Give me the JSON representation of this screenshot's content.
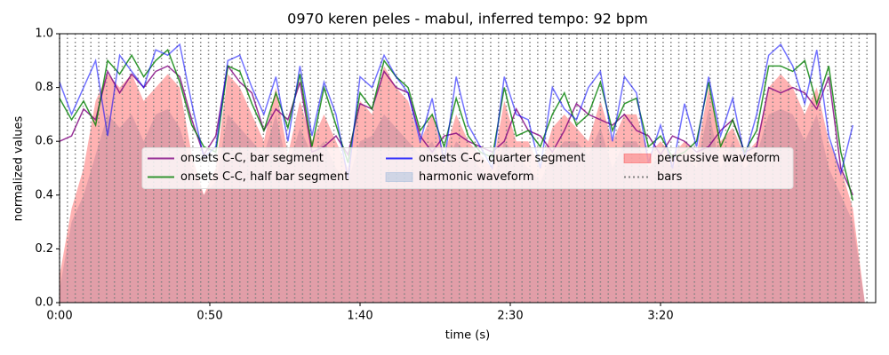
{
  "chart_data": {
    "type": "line",
    "title": "0970 keren peles - mabul, inferred tempo: 92 bpm",
    "x_label": "time (s)",
    "y_label": "normalized values",
    "xlim": [
      0,
      271.6
    ],
    "ylim": [
      0,
      1
    ],
    "xticks": [
      {
        "value": 0,
        "label": "0:00"
      },
      {
        "value": 50,
        "label": "0:50"
      },
      {
        "value": 100,
        "label": "1:40"
      },
      {
        "value": 150,
        "label": "2:30"
      },
      {
        "value": 200,
        "label": "3:20"
      }
    ],
    "yticks": [
      {
        "value": 0,
        "label": "0.0"
      },
      0.2,
      0.4,
      0.6,
      0.8,
      {
        "value": 1,
        "label": "1.0"
      }
    ],
    "legend_loc": "center",
    "x": [
      0,
      4,
      8,
      12,
      16,
      20,
      24,
      28,
      32,
      36,
      40,
      44,
      48,
      52,
      56,
      60,
      64,
      68,
      72,
      76,
      80,
      84,
      88,
      92,
      96,
      100,
      104,
      108,
      112,
      116,
      120,
      124,
      128,
      132,
      136,
      140,
      144,
      148,
      152,
      156,
      160,
      164,
      168,
      172,
      176,
      180,
      184,
      188,
      192,
      196,
      200,
      204,
      208,
      212,
      216,
      220,
      224,
      228,
      232,
      236,
      240,
      244,
      248,
      252,
      256,
      260,
      264,
      268
    ],
    "series": [
      {
        "name": "onsets C-C, bar segment",
        "kind": "line",
        "color": "#800080",
        "values": [
          0.6,
          0.62,
          0.72,
          0.68,
          0.86,
          0.78,
          0.85,
          0.8,
          0.86,
          0.88,
          0.84,
          0.68,
          0.55,
          0.62,
          0.88,
          0.82,
          0.78,
          0.64,
          0.72,
          0.68,
          0.82,
          0.56,
          0.58,
          0.62,
          0.55,
          0.74,
          0.72,
          0.86,
          0.8,
          0.78,
          0.62,
          0.56,
          0.62,
          0.63,
          0.6,
          0.58,
          0.56,
          0.6,
          0.72,
          0.64,
          0.62,
          0.56,
          0.64,
          0.74,
          0.7,
          0.68,
          0.66,
          0.7,
          0.64,
          0.62,
          0.55,
          0.62,
          0.6,
          0.56,
          0.58,
          0.64,
          0.68,
          0.56,
          0.58,
          0.8,
          0.78,
          0.8,
          0.78,
          0.72,
          0.84,
          0.5,
          0.4,
          null
        ]
      },
      {
        "name": "onsets C-C, half bar segment",
        "kind": "line",
        "color": "#008000",
        "values": [
          0.76,
          0.68,
          0.75,
          0.66,
          0.9,
          0.85,
          0.92,
          0.84,
          0.9,
          0.94,
          0.82,
          0.66,
          0.58,
          0.56,
          0.88,
          0.86,
          0.74,
          0.64,
          0.78,
          0.65,
          0.85,
          0.58,
          0.8,
          0.66,
          0.52,
          0.78,
          0.72,
          0.9,
          0.84,
          0.8,
          0.64,
          0.7,
          0.58,
          0.76,
          0.62,
          0.56,
          0.54,
          0.8,
          0.62,
          0.64,
          0.58,
          0.7,
          0.78,
          0.66,
          0.7,
          0.82,
          0.64,
          0.74,
          0.76,
          0.58,
          0.62,
          0.54,
          0.56,
          0.6,
          0.82,
          0.58,
          0.68,
          0.56,
          0.64,
          0.88,
          0.88,
          0.86,
          0.9,
          0.74,
          0.88,
          0.56,
          0.38,
          null
        ]
      },
      {
        "name": "onsets C-C, quarter segment",
        "kind": "line",
        "color": "#0000ff",
        "values": [
          0.82,
          0.7,
          0.8,
          0.9,
          0.62,
          0.92,
          0.86,
          0.8,
          0.94,
          0.92,
          0.96,
          0.74,
          0.54,
          0.58,
          0.9,
          0.92,
          0.8,
          0.7,
          0.84,
          0.6,
          0.88,
          0.62,
          0.82,
          0.7,
          0.46,
          0.84,
          0.8,
          0.92,
          0.84,
          0.78,
          0.6,
          0.76,
          0.52,
          0.84,
          0.66,
          0.58,
          0.5,
          0.84,
          0.7,
          0.68,
          0.5,
          0.8,
          0.72,
          0.68,
          0.8,
          0.86,
          0.6,
          0.84,
          0.78,
          0.52,
          0.66,
          0.5,
          0.74,
          0.58,
          0.84,
          0.62,
          0.76,
          0.54,
          0.7,
          0.92,
          0.96,
          0.88,
          0.74,
          0.94,
          0.62,
          0.48,
          0.66,
          null
        ]
      },
      {
        "name": "harmonic waveform",
        "kind": "area",
        "color": "#6f9fd0",
        "values": [
          0.05,
          0.3,
          0.4,
          0.55,
          0.7,
          0.65,
          0.7,
          0.6,
          0.7,
          0.72,
          0.65,
          0.5,
          0.4,
          0.45,
          0.7,
          0.65,
          0.6,
          0.55,
          0.7,
          0.5,
          0.65,
          0.55,
          0.6,
          0.5,
          0.45,
          0.6,
          0.62,
          0.7,
          0.65,
          0.6,
          0.55,
          0.6,
          0.5,
          0.6,
          0.55,
          0.5,
          0.45,
          0.6,
          0.55,
          0.5,
          0.45,
          0.55,
          0.6,
          0.6,
          0.55,
          0.65,
          0.5,
          0.6,
          0.6,
          0.5,
          0.55,
          0.5,
          0.55,
          0.5,
          0.72,
          0.5,
          0.6,
          0.5,
          0.55,
          0.7,
          0.72,
          0.7,
          0.6,
          0.7,
          0.5,
          0.4,
          0.3,
          0.0
        ]
      },
      {
        "name": "percussive waveform",
        "kind": "area",
        "color": "#ff0000",
        "values": [
          0.1,
          0.35,
          0.5,
          0.75,
          0.85,
          0.8,
          0.85,
          0.75,
          0.8,
          0.85,
          0.8,
          0.55,
          0.4,
          0.5,
          0.85,
          0.8,
          0.7,
          0.6,
          0.8,
          0.55,
          0.75,
          0.6,
          0.7,
          0.6,
          0.5,
          0.75,
          0.7,
          0.88,
          0.8,
          0.75,
          0.6,
          0.7,
          0.55,
          0.7,
          0.6,
          0.55,
          0.5,
          0.75,
          0.6,
          0.6,
          0.5,
          0.65,
          0.7,
          0.65,
          0.6,
          0.75,
          0.6,
          0.7,
          0.7,
          0.55,
          0.6,
          0.55,
          0.6,
          0.55,
          0.8,
          0.6,
          0.65,
          0.55,
          0.6,
          0.8,
          0.85,
          0.8,
          0.7,
          0.8,
          0.6,
          0.5,
          0.35,
          0.0
        ]
      },
      {
        "name": "bars",
        "kind": "vlines",
        "color": "#808080",
        "x": [
          0,
          2.61,
          5.22,
          7.83,
          10.43,
          13.04,
          15.65,
          18.26,
          20.87,
          23.48,
          26.09,
          28.7,
          31.3,
          33.91,
          36.52,
          39.13,
          41.74,
          44.35,
          46.96,
          49.57,
          52.17,
          54.78,
          57.39,
          60.0,
          62.61,
          65.22,
          67.83,
          70.43,
          73.04,
          75.65,
          78.26,
          80.87,
          83.48,
          86.09,
          88.7,
          91.3,
          93.91,
          96.52,
          99.13,
          101.74,
          104.35,
          106.96,
          109.57,
          112.17,
          114.78,
          117.39,
          120.0,
          122.61,
          125.22,
          127.83,
          130.43,
          133.04,
          135.65,
          138.26,
          140.87,
          143.48,
          146.09,
          148.7,
          151.3,
          153.91,
          156.52,
          159.13,
          161.74,
          164.35,
          166.96,
          169.57,
          172.17,
          174.78,
          177.39,
          180.0,
          182.61,
          185.22,
          187.83,
          190.43,
          193.04,
          195.65,
          198.26,
          200.87,
          203.48,
          206.09,
          208.7,
          211.3,
          213.91,
          216.52,
          219.13,
          221.74,
          224.35,
          226.96,
          229.57,
          232.17,
          234.78,
          237.39,
          240.0,
          242.61,
          245.22,
          247.83,
          250.43,
          253.04,
          255.65,
          258.26,
          260.87,
          263.48,
          266.09,
          268.7
        ]
      }
    ]
  }
}
